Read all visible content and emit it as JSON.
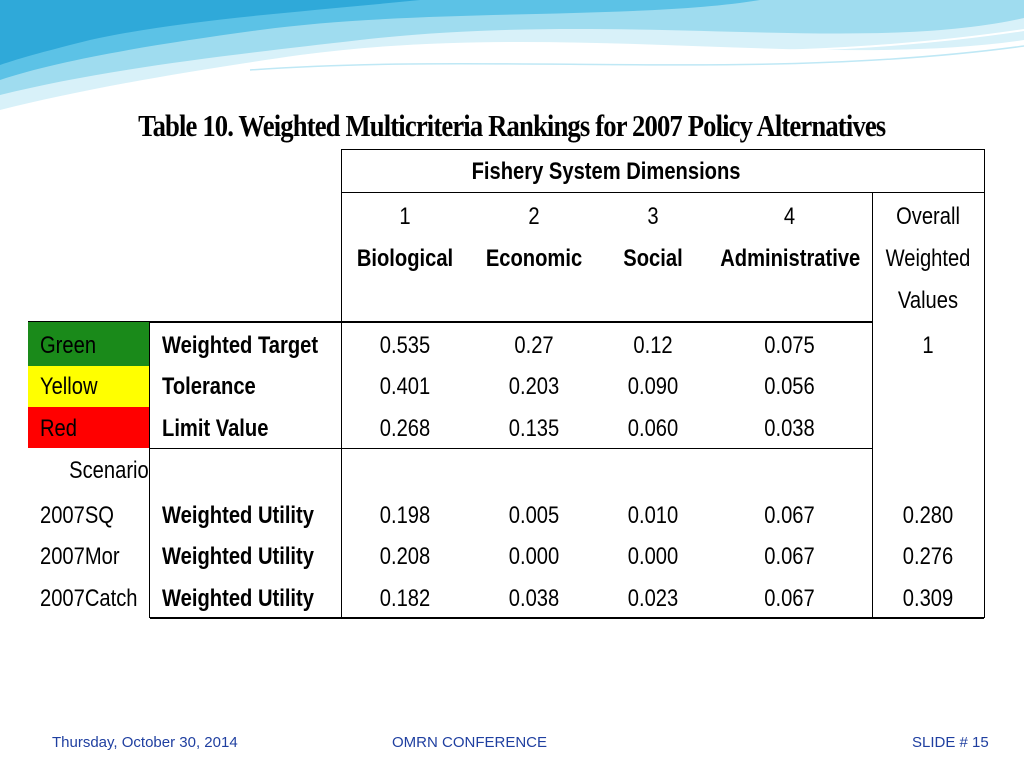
{
  "slide": {
    "title": "Table 10. Weighted Multicriteria Rankings for 2007 Policy Alternatives",
    "colors": {
      "wave_light": "#bfe8f5",
      "wave_mid": "#7dd3ec",
      "wave_dark": "#3bb3de",
      "green": "#1a8a1a",
      "yellow": "#ffff00",
      "red": "#ff0000",
      "footer_text": "#1f3fa0"
    }
  },
  "table": {
    "group_header": "Fishery System Dimensions",
    "dimensions": [
      {
        "number": "1",
        "name": "Biological"
      },
      {
        "number": "2",
        "name": "Economic"
      },
      {
        "number": "3",
        "name": "Social"
      },
      {
        "number": "4",
        "name": "Administrative"
      }
    ],
    "overall_header": [
      "Overall",
      "Weighted",
      "Values"
    ],
    "criteria_rows": [
      {
        "level": "Green",
        "label": "Weighted Target",
        "values": [
          "0.535",
          "0.27",
          "0.12",
          "0.075"
        ],
        "overall": "1"
      },
      {
        "level": "Yellow",
        "label": "Tolerance",
        "values": [
          "0.401",
          "0.203",
          "0.090",
          "0.056"
        ],
        "overall": ""
      },
      {
        "level": "Red",
        "label": "Limit Value",
        "values": [
          "0.268",
          "0.135",
          "0.060",
          "0.038"
        ],
        "overall": ""
      }
    ],
    "scenario_header": "Scenario",
    "scenario_rows": [
      {
        "scenario": "2007SQ",
        "label": "Weighted Utility",
        "values": [
          "0.198",
          "0.005",
          "0.010",
          "0.067"
        ],
        "overall": "0.280"
      },
      {
        "scenario": "2007Mor",
        "label": "Weighted Utility",
        "values": [
          "0.208",
          "0.000",
          "0.000",
          "0.067"
        ],
        "overall": "0.276"
      },
      {
        "scenario": "2007Catch",
        "label": "Weighted Utility",
        "values": [
          "0.182",
          "0.038",
          "0.023",
          "0.067"
        ],
        "overall": "0.309"
      }
    ]
  },
  "footer": {
    "date": "Thursday, October 30, 2014",
    "center": "OMRN CONFERENCE",
    "slide_number": "SLIDE # 15"
  }
}
